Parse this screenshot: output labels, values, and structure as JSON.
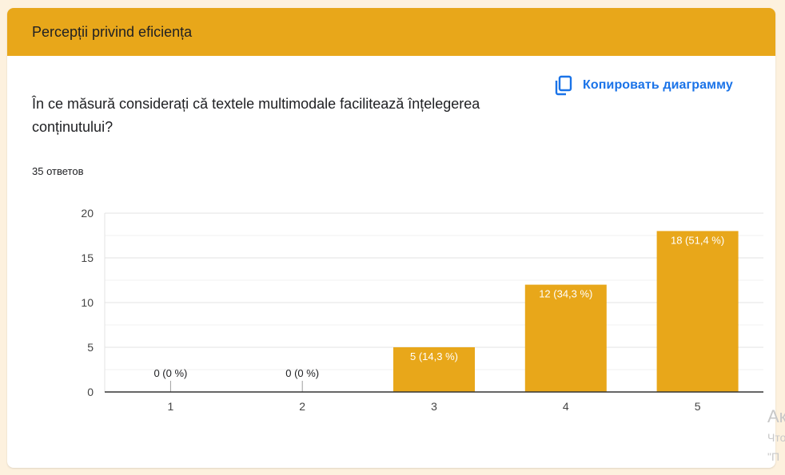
{
  "section": {
    "title": "Percepții privind eficiența"
  },
  "question": {
    "text": "În ce măsură considerați că textele multimodale facilitează înțelegerea conținutului?"
  },
  "copy_chart": {
    "label": "Копировать диаграмму",
    "icon": "copy-icon"
  },
  "responses": {
    "text": "35 ответов"
  },
  "watermark": {
    "line1": "Ак",
    "line2": "Что",
    "line3": "\"П"
  },
  "colors": {
    "accent": "#e8a71a",
    "link": "#1a73e8",
    "background": "#fdf1de"
  },
  "chart_data": {
    "type": "bar",
    "categories": [
      "1",
      "2",
      "3",
      "4",
      "5"
    ],
    "values": [
      0,
      0,
      5,
      12,
      18
    ],
    "data_labels": [
      "0 (0 %)",
      "0 (0 %)",
      "5 (14,3 %)",
      "12 (34,3 %)",
      "18 (51,4 %)"
    ],
    "ylim": [
      0,
      20
    ],
    "yticks": [
      0,
      5,
      10,
      15,
      20
    ],
    "grid": true,
    "bar_color": "#e8a71a"
  }
}
